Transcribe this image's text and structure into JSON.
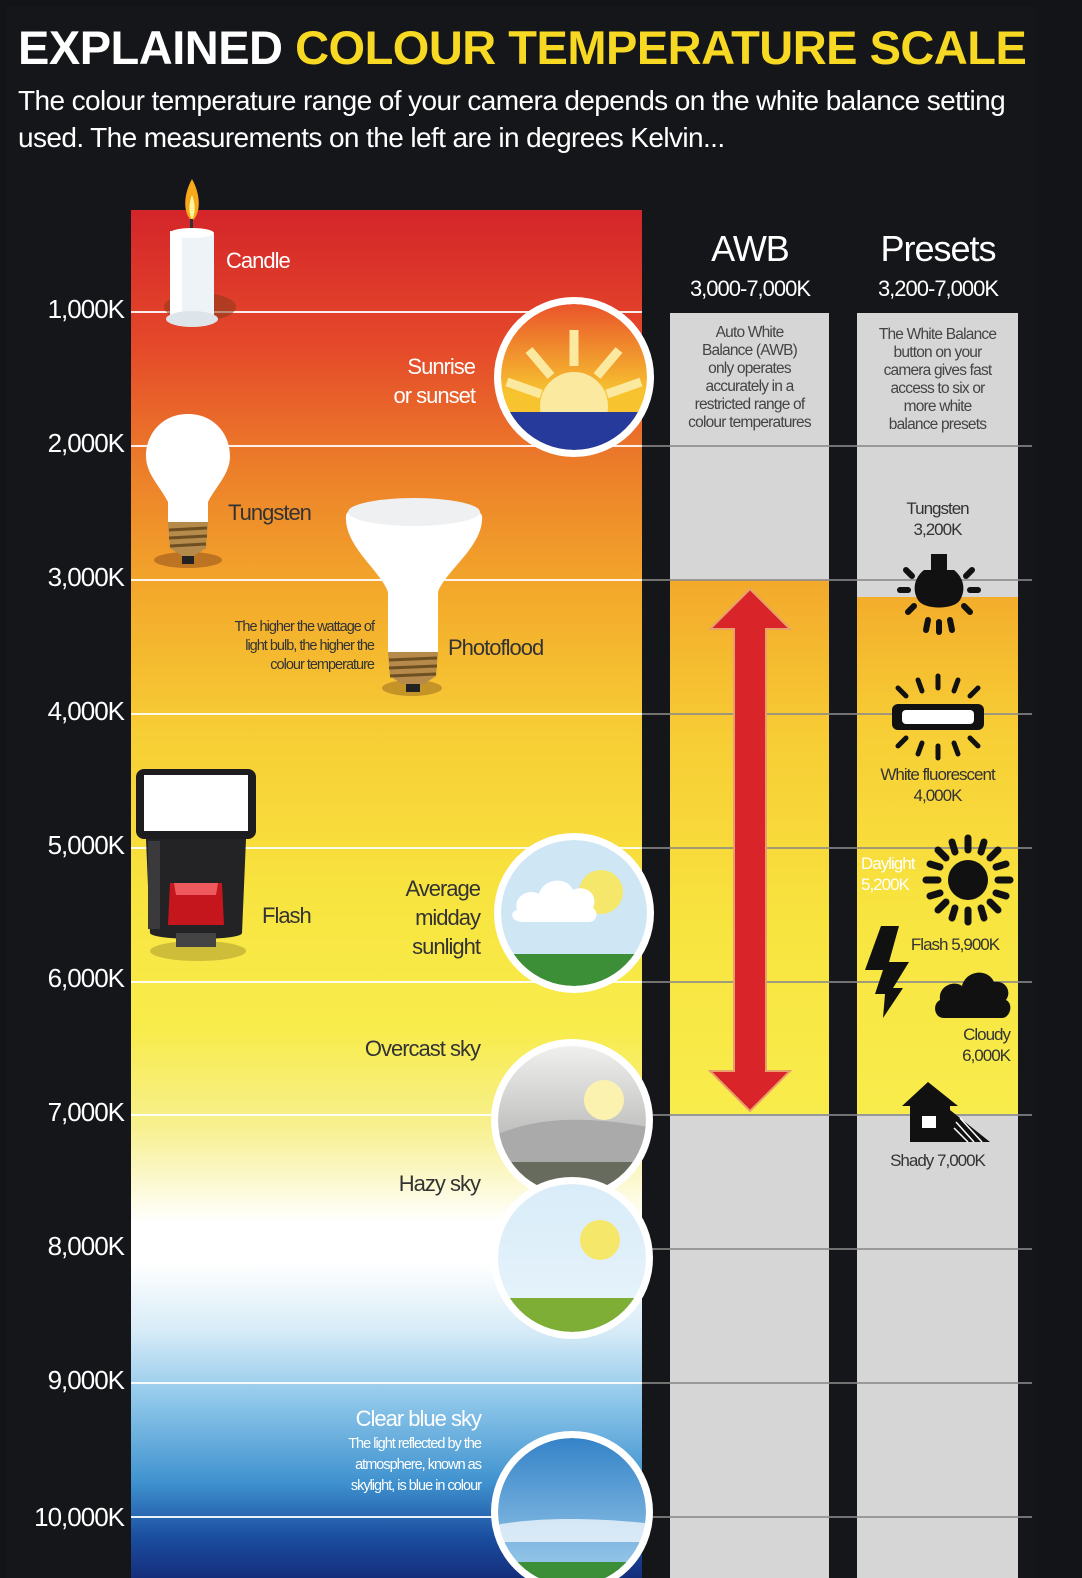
{
  "header": {
    "title_white": "EXPLAINED",
    "title_yellow": "COLOUR TEMPERATURE SCALE",
    "intro": "The colour temperature range of your camera depends on the white balance setting used. The measurements on the left are in degrees Kelvin..."
  },
  "scale": {
    "ticks": [
      "1,000K",
      "2,000K",
      "3,000K",
      "4,000K",
      "5,000K",
      "6,000K",
      "7,000K",
      "8,000K",
      "9,000K",
      "10,000K"
    ]
  },
  "sources": {
    "candle": "Candle",
    "sunrise_1": "Sunrise",
    "sunrise_2": "or sunset",
    "tungsten": "Tungsten",
    "photoflood": "Photoflood",
    "wattage_note_1": "The higher the wattage of",
    "wattage_note_2": "light bulb, the higher the",
    "wattage_note_3": "colour temperature",
    "flash": "Flash",
    "midday_1": "Average",
    "midday_2": "midday",
    "midday_3": "sunlight",
    "overcast": "Overcast sky",
    "hazy": "Hazy sky",
    "clear": "Clear blue sky",
    "clear_note_1": "The light reflected by the",
    "clear_note_2": "atmosphere, known as",
    "clear_note_3": "skylight, is blue in colour"
  },
  "awb": {
    "title": "AWB",
    "range": "3,000-7,000K",
    "note": [
      "Auto White",
      "Balance (AWB)",
      "only operates",
      "accurately in a",
      "restricted range of",
      "colour temperatures"
    ],
    "range_min_k": 3000,
    "range_max_k": 7000
  },
  "presets": {
    "title": "Presets",
    "range": "3,200-7,000K",
    "note": [
      "The White Balance",
      "button on your",
      "camera gives fast",
      "access to six or",
      "more white",
      "balance presets"
    ],
    "tungsten_1": "Tungsten",
    "tungsten_2": "3,200K",
    "fluorescent_1": "White fluorescent",
    "fluorescent_2": "4,000K",
    "daylight_1": "Daylight",
    "daylight_2": "5,200K",
    "flash": "Flash 5,900K",
    "cloudy_1": "Cloudy",
    "cloudy_2": "6,000K",
    "shady": "Shady 7,000K",
    "icons": [
      "tungsten-bulb-icon",
      "fluorescent-tube-icon",
      "sun-icon",
      "lightning-bolt-icon",
      "cloud-icon",
      "house-shade-icon"
    ]
  },
  "colors": {
    "title_accent": "#f7d923",
    "arrow_red": "#d9252a",
    "column_grey": "#d6d6d6",
    "background": "#15161a"
  }
}
